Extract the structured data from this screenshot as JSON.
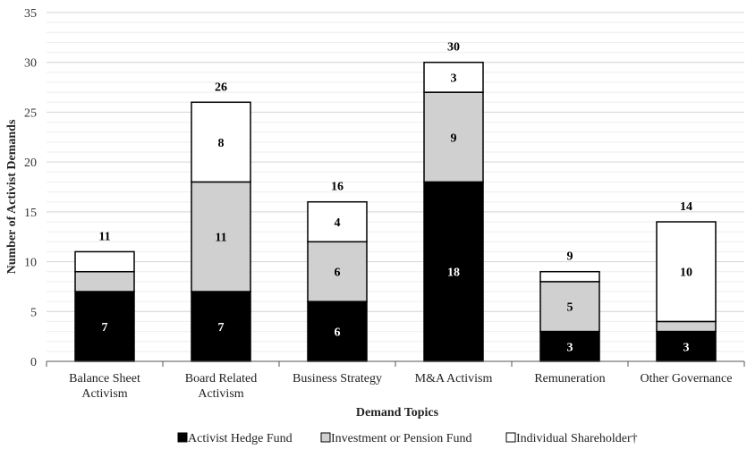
{
  "chart_data": {
    "type": "bar",
    "stacked": true,
    "xlabel": "Demand Topics",
    "ylabel": "Number of Activist Demands",
    "ylim": [
      0,
      35
    ],
    "yticks": [
      "0",
      "5",
      "10",
      "15",
      "20",
      "25",
      "30",
      "35"
    ],
    "grid": true,
    "legend_position": "bottom",
    "categories": [
      [
        "Balance Sheet",
        "Activism"
      ],
      [
        "Board Related",
        "Activism"
      ],
      [
        "Business Strategy"
      ],
      [
        "M&A Activism"
      ],
      [
        "Remuneration"
      ],
      [
        "Other Governance"
      ]
    ],
    "series": [
      {
        "name": "Activist Hedge Fund",
        "color": "#000000",
        "label_color": "#ffffff",
        "values": [
          7,
          7,
          6,
          18,
          3,
          3
        ],
        "labels": [
          "7",
          "7",
          "6",
          "18",
          "3",
          "3"
        ]
      },
      {
        "name": "Investment or Pension Fund",
        "color": "#d0d0d0",
        "label_color": "#000000",
        "values": [
          2,
          11,
          6,
          9,
          5,
          1
        ],
        "labels": [
          "",
          "11",
          "6",
          "9",
          "5",
          ""
        ]
      },
      {
        "name": "Individual Shareholder†",
        "color": "#ffffff",
        "label_color": "#000000",
        "values": [
          2,
          8,
          4,
          3,
          1,
          10
        ],
        "labels": [
          "",
          "8",
          "4",
          "3",
          "",
          "10"
        ]
      }
    ],
    "totals": [
      "11",
      "26",
      "16",
      "30",
      "9",
      "14"
    ]
  }
}
